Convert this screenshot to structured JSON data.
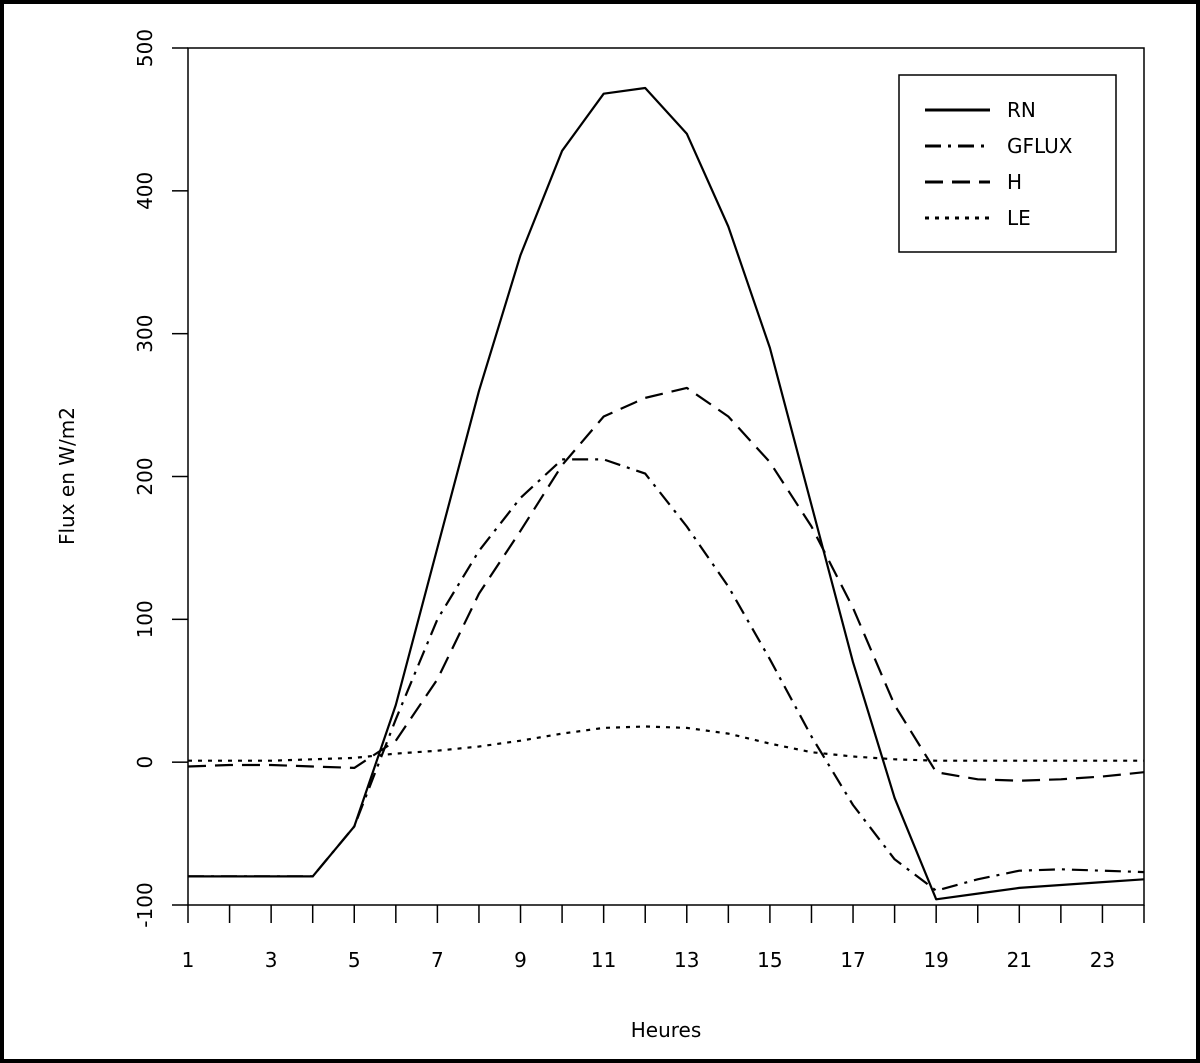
{
  "chart_data": {
    "type": "line",
    "title": "",
    "xlabel": "Heures",
    "ylabel": "Flux en W/m2",
    "x": [
      1,
      2,
      3,
      4,
      5,
      6,
      7,
      8,
      9,
      10,
      11,
      12,
      13,
      14,
      15,
      16,
      17,
      18,
      19,
      20,
      21,
      22,
      23,
      24
    ],
    "xlim": [
      1,
      24
    ],
    "ylim": [
      -100,
      500
    ],
    "xticks": [
      1,
      3,
      5,
      7,
      9,
      11,
      13,
      15,
      17,
      19,
      21,
      23
    ],
    "yticks": [
      -100,
      0,
      100,
      200,
      300,
      400,
      500
    ],
    "grid": false,
    "legend_position": "top-right",
    "series": [
      {
        "name": "RN",
        "dash": "solid",
        "values": [
          -80,
          -80,
          -80,
          -80,
          -45,
          40,
          150,
          260,
          355,
          428,
          468,
          472,
          440,
          375,
          290,
          180,
          70,
          -25,
          -96,
          -92,
          -88,
          -86,
          -84,
          -82
        ]
      },
      {
        "name": "GFLUX",
        "dash": "dashdot",
        "values": [
          -80,
          -80,
          -80,
          -80,
          -45,
          30,
          100,
          148,
          185,
          212,
          212,
          202,
          165,
          123,
          72,
          18,
          -30,
          -68,
          -90,
          -82,
          -76,
          -75,
          -76,
          -77
        ]
      },
      {
        "name": "H",
        "dash": "dash",
        "values": [
          -3,
          -2,
          -2,
          -3,
          -4,
          15,
          58,
          118,
          162,
          208,
          242,
          255,
          262,
          242,
          210,
          165,
          108,
          40,
          -7,
          -12,
          -13,
          -12,
          -10,
          -7
        ]
      },
      {
        "name": "LE",
        "dash": "dot",
        "values": [
          1,
          1,
          1,
          2,
          3,
          6,
          8,
          11,
          15,
          20,
          24,
          25,
          24,
          20,
          13,
          7,
          4,
          2,
          1,
          1,
          1,
          1,
          1,
          1
        ]
      }
    ]
  }
}
